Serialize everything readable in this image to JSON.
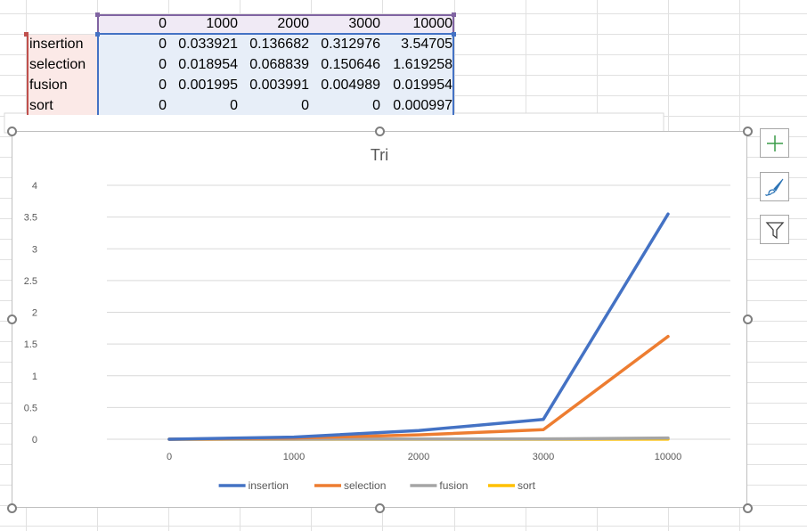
{
  "spreadsheet": {
    "header_row": [
      "0",
      "1000",
      "2000",
      "3000",
      "10000"
    ],
    "rows": [
      {
        "label": "insertion",
        "values": [
          "0",
          "0.033921",
          "0.136682",
          "0.312976",
          "3.54705"
        ]
      },
      {
        "label": "selection",
        "values": [
          "0",
          "0.018954",
          "0.068839",
          "0.150646",
          "1.619258"
        ]
      },
      {
        "label": "fusion",
        "values": [
          "0",
          "0.001995",
          "0.003991",
          "0.004989",
          "0.019954"
        ]
      },
      {
        "label": "sort",
        "values": [
          "0",
          "0",
          "0",
          "0",
          "0.000997"
        ]
      }
    ]
  },
  "chart_data": {
    "type": "line",
    "title": "Tri",
    "categories": [
      "0",
      "1000",
      "2000",
      "3000",
      "10000"
    ],
    "series": [
      {
        "name": "insertion",
        "color": "#4472c4",
        "values": [
          0,
          0.033921,
          0.136682,
          0.312976,
          3.54705
        ]
      },
      {
        "name": "selection",
        "color": "#ed7d31",
        "values": [
          0,
          0.018954,
          0.068839,
          0.150646,
          1.619258
        ]
      },
      {
        "name": "fusion",
        "color": "#a5a5a5",
        "values": [
          0,
          0.001995,
          0.003991,
          0.004989,
          0.019954
        ]
      },
      {
        "name": "sort",
        "color": "#ffc000",
        "values": [
          0,
          0,
          0,
          0,
          0.000997
        ]
      }
    ],
    "ylim": [
      0,
      4
    ],
    "yticks": [
      "0",
      "0.5",
      "1",
      "1.5",
      "2",
      "2.5",
      "3",
      "3.5",
      "4"
    ],
    "grid": true,
    "legend": "bottom"
  },
  "chart_tools": {
    "add_element": "plus-icon",
    "styles": "brush-icon",
    "filter": "filter-icon"
  }
}
